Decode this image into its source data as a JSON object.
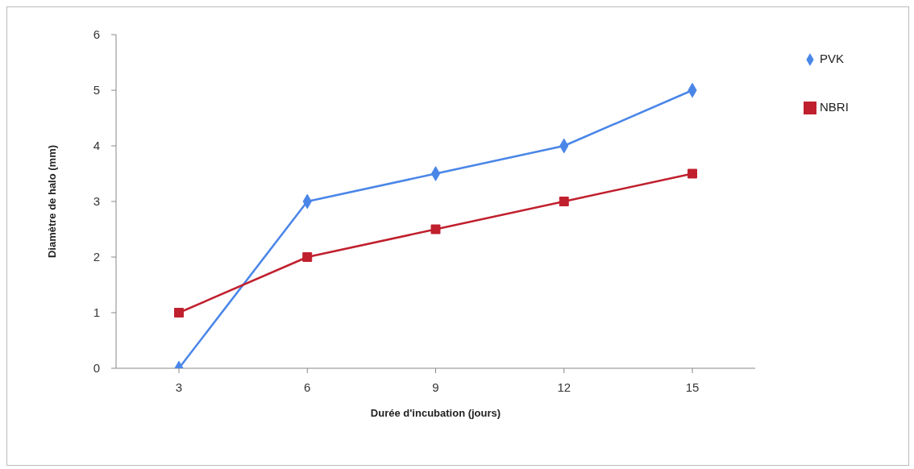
{
  "chart_data": {
    "type": "line",
    "xlabel": "Durée d'incubation (jours)",
    "ylabel": "Diamètre de halo (mm)",
    "categories": [
      "3",
      "6",
      "9",
      "12",
      "15"
    ],
    "series": [
      {
        "name": "PVK",
        "color": "#4a86e8",
        "values": [
          0,
          3,
          3.5,
          4,
          5
        ],
        "marker": "diamond"
      },
      {
        "name": "NBRI",
        "color": "#c0202e",
        "values": [
          1,
          2,
          2.5,
          3,
          3.5
        ],
        "marker": "square"
      }
    ],
    "ylim": [
      0,
      6
    ],
    "yticks": [
      0,
      1,
      2,
      3,
      4,
      5,
      6
    ],
    "legend": "top right",
    "line_style": "solid"
  }
}
